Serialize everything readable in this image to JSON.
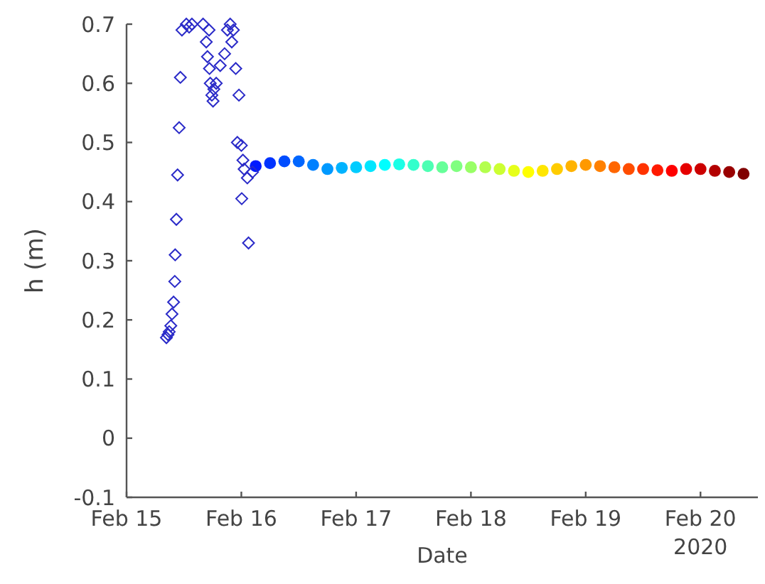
{
  "chart_data": {
    "type": "scatter",
    "xlabel": "Date",
    "ylabel": "h (m)",
    "annotations": [
      "2020"
    ],
    "xlim": [
      "2020-02-15",
      "2020-02-20T12:00"
    ],
    "xticks": [
      {
        "value": "2020-02-15",
        "label": "Feb 15"
      },
      {
        "value": "2020-02-16",
        "label": "Feb 16"
      },
      {
        "value": "2020-02-17",
        "label": "Feb 17"
      },
      {
        "value": "2020-02-18",
        "label": "Feb 18"
      },
      {
        "value": "2020-02-19",
        "label": "Feb 19"
      },
      {
        "value": "2020-02-20",
        "label": "Feb 20"
      }
    ],
    "ylim": [
      -0.1,
      0.7
    ],
    "yticks": [
      -0.1,
      0,
      0.1,
      0.2,
      0.3,
      0.4,
      0.5,
      0.6,
      0.7
    ],
    "grid": false,
    "series": [
      {
        "color": "#2a2ac8",
        "marker": "diamond",
        "x": [
          "2020-02-15T08:20",
          "2020-02-15T08:40",
          "2020-02-15T08:55",
          "2020-02-15T09:15",
          "2020-02-15T09:30",
          "2020-02-15T09:50",
          "2020-02-15T10:05",
          "2020-02-15T10:10",
          "2020-02-15T10:25",
          "2020-02-15T10:40",
          "2020-02-15T11:00",
          "2020-02-15T11:15",
          "2020-02-15T11:35",
          "2020-02-15T12:30",
          "2020-02-15T13:05",
          "2020-02-15T13:40",
          "2020-02-15T16:00",
          "2020-02-15T16:40",
          "2020-02-15T16:55",
          "2020-02-15T17:15",
          "2020-02-15T17:20",
          "2020-02-15T17:30",
          "2020-02-15T17:50",
          "2020-02-15T18:05",
          "2020-02-15T18:15",
          "2020-02-15T18:45",
          "2020-02-15T19:35",
          "2020-02-15T20:30",
          "2020-02-15T21:05",
          "2020-02-15T21:40",
          "2020-02-15T22:00",
          "2020-02-15T22:20",
          "2020-02-15T22:50",
          "2020-02-15T23:30",
          "2020-02-15T23:10",
          "2020-02-16T00:00",
          "2020-02-16T00:20",
          "2020-02-16T00:35",
          "2020-02-16T01:15",
          "2020-02-16T00:05",
          "2020-02-16T01:30",
          "2020-02-16T02:20"
        ],
        "values": [
          0.17,
          0.175,
          0.18,
          0.19,
          0.21,
          0.23,
          0.265,
          0.31,
          0.37,
          0.445,
          0.525,
          0.61,
          0.69,
          0.7,
          0.695,
          0.7,
          0.7,
          0.67,
          0.645,
          0.69,
          0.625,
          0.6,
          0.58,
          0.57,
          0.59,
          0.6,
          0.63,
          0.65,
          0.69,
          0.7,
          0.67,
          0.69,
          0.625,
          0.58,
          0.5,
          0.495,
          0.47,
          0.455,
          0.44,
          0.405,
          0.33,
          0.45
        ]
      },
      {
        "marker": "circle",
        "x": [
          "2020-02-16T03:00",
          "2020-02-16T06:00",
          "2020-02-16T09:00",
          "2020-02-16T12:00",
          "2020-02-16T15:00",
          "2020-02-16T18:00",
          "2020-02-16T21:00",
          "2020-02-17T00:00",
          "2020-02-17T03:00",
          "2020-02-17T06:00",
          "2020-02-17T09:00",
          "2020-02-17T12:00",
          "2020-02-17T15:00",
          "2020-02-17T18:00",
          "2020-02-17T21:00",
          "2020-02-18T00:00",
          "2020-02-18T03:00",
          "2020-02-18T06:00",
          "2020-02-18T09:00",
          "2020-02-18T12:00",
          "2020-02-18T15:00",
          "2020-02-18T18:00",
          "2020-02-18T21:00",
          "2020-02-19T00:00",
          "2020-02-19T03:00",
          "2020-02-19T06:00",
          "2020-02-19T09:00",
          "2020-02-19T12:00",
          "2020-02-19T15:00",
          "2020-02-19T18:00",
          "2020-02-19T21:00",
          "2020-02-20T00:00",
          "2020-02-20T03:00",
          "2020-02-20T06:00",
          "2020-02-20T09:00"
        ],
        "values": [
          0.46,
          0.465,
          0.468,
          0.468,
          0.462,
          0.455,
          0.457,
          0.458,
          0.46,
          0.462,
          0.463,
          0.462,
          0.46,
          0.458,
          0.46,
          0.458,
          0.458,
          0.455,
          0.452,
          0.45,
          0.452,
          0.455,
          0.46,
          0.462,
          0.46,
          0.458,
          0.455,
          0.455,
          0.453,
          0.452,
          0.455,
          0.455,
          0.452,
          0.45,
          0.447
        ],
        "colors": [
          "#001aff",
          "#0033ff",
          "#004dff",
          "#0066ff",
          "#0080ff",
          "#0099ff",
          "#00b3ff",
          "#00ccff",
          "#00e6ff",
          "#00ffff",
          "#1affe6",
          "#33ffcc",
          "#4dffb3",
          "#66ff99",
          "#80ff80",
          "#99ff66",
          "#b3ff4d",
          "#ccff33",
          "#e6ff1a",
          "#ffff00",
          "#ffe600",
          "#ffcc00",
          "#ffb300",
          "#ff9900",
          "#ff8000",
          "#ff6600",
          "#ff4d00",
          "#ff3300",
          "#ff1a00",
          "#ff0000",
          "#e60000",
          "#cc0000",
          "#b30000",
          "#990000",
          "#800000"
        ]
      }
    ]
  }
}
